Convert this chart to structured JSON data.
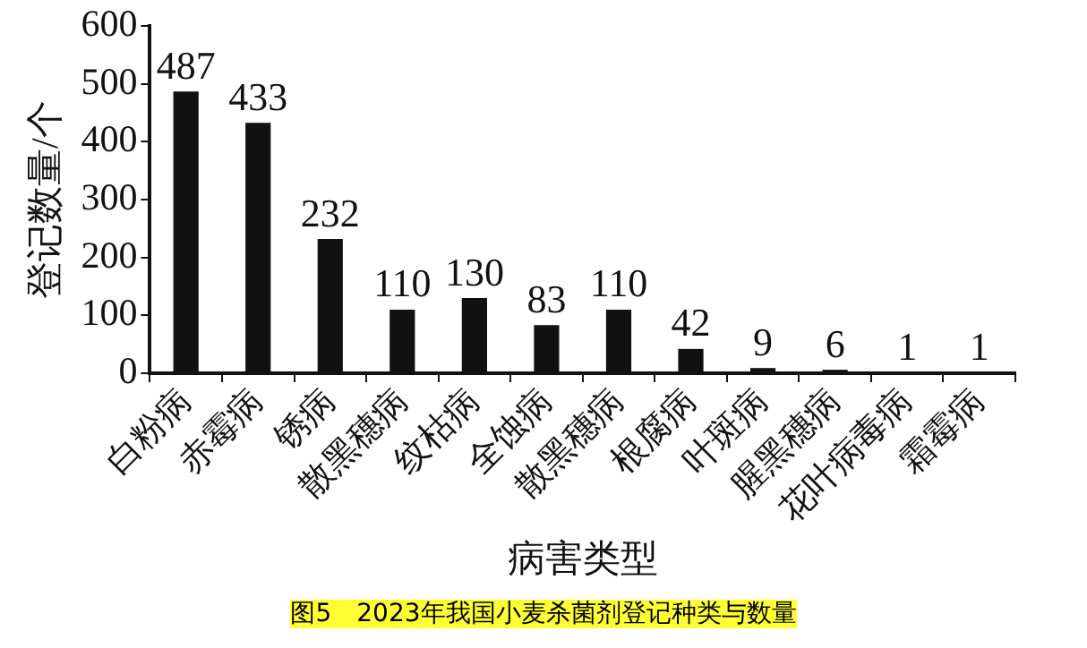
{
  "chart_data": {
    "type": "bar",
    "xlabel": "病害类型",
    "ylabel": "登记数量/个",
    "categories": [
      "白粉病",
      "赤霉病",
      "锈病",
      "散黑穗病",
      "纹枯病",
      "全蚀病",
      "散黑穗病",
      "根腐病",
      "叶斑病",
      "腥黑穗病",
      "花叶病毒病",
      "霜霉病"
    ],
    "values": [
      487,
      433,
      232,
      110,
      130,
      83,
      110,
      42,
      9,
      6,
      1,
      1
    ],
    "color": "#111111",
    "ylim": [
      0,
      600
    ],
    "yticks": [
      0,
      100,
      200,
      300,
      400,
      500,
      600
    ],
    "grid": false,
    "data_labels": true,
    "annotations": [
      "图5　2023年我国小麦杀菌剂登记种类与数量"
    ]
  }
}
